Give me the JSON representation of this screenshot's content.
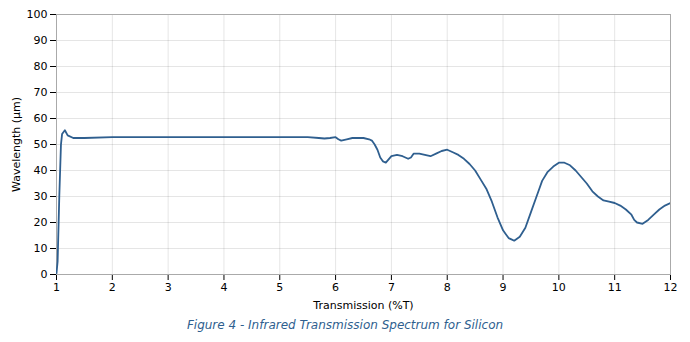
{
  "chart_data": {
    "type": "line",
    "title": "Figure 4 - Infrared Transmission Spectrum for Silicon",
    "xlabel": "Transmission (%T)",
    "ylabel": "Wavelength (µm)",
    "x": [
      1.0,
      1.02,
      1.05,
      1.08,
      1.1,
      1.15,
      1.2,
      1.3,
      1.5,
      2.0,
      2.5,
      3.0,
      3.5,
      4.0,
      4.5,
      5.0,
      5.5,
      5.7,
      5.8,
      5.9,
      6.0,
      6.05,
      6.1,
      6.2,
      6.3,
      6.5,
      6.6,
      6.65,
      6.7,
      6.75,
      6.8,
      6.85,
      6.9,
      7.0,
      7.1,
      7.2,
      7.3,
      7.35,
      7.4,
      7.5,
      7.6,
      7.7,
      7.8,
      7.9,
      8.0,
      8.05,
      8.1,
      8.2,
      8.3,
      8.4,
      8.5,
      8.6,
      8.7,
      8.8,
      8.9,
      9.0,
      9.05,
      9.1,
      9.15,
      9.2,
      9.3,
      9.4,
      9.5,
      9.6,
      9.65,
      9.7,
      9.8,
      9.9,
      10.0,
      10.1,
      10.2,
      10.3,
      10.4,
      10.5,
      10.6,
      10.7,
      10.8,
      10.9,
      11.0,
      11.1,
      11.2,
      11.3,
      11.35,
      11.4,
      11.5,
      11.6,
      11.7,
      11.8,
      11.9,
      12.0
    ],
    "values": [
      0.5,
      5.0,
      30.0,
      50.0,
      54.0,
      55.5,
      53.5,
      52.5,
      52.5,
      52.8,
      52.8,
      52.8,
      52.8,
      52.8,
      52.8,
      52.8,
      52.8,
      52.5,
      52.3,
      52.5,
      52.8,
      52.0,
      51.5,
      52.0,
      52.5,
      52.5,
      52.0,
      51.5,
      50.0,
      48.0,
      45.0,
      43.5,
      43.0,
      45.5,
      46.0,
      45.5,
      44.5,
      45.0,
      46.5,
      46.5,
      46.0,
      45.5,
      46.5,
      47.5,
      48.0,
      47.5,
      47.0,
      46.0,
      44.5,
      42.5,
      40.0,
      36.5,
      33.0,
      28.0,
      22.0,
      17.0,
      15.5,
      14.0,
      13.5,
      13.0,
      14.5,
      18.0,
      24.0,
      30.0,
      33.0,
      36.0,
      39.5,
      41.5,
      43.0,
      43.0,
      42.0,
      40.0,
      37.5,
      35.0,
      32.0,
      30.0,
      28.5,
      28.0,
      27.5,
      26.5,
      25.0,
      23.0,
      21.0,
      20.0,
      19.5,
      21.0,
      23.0,
      25.0,
      26.5,
      27.5
    ],
    "color": "#2F5F8F",
    "xlim": [
      1,
      12
    ],
    "ylim": [
      0,
      100
    ],
    "xticks": [
      1,
      2,
      3,
      4,
      5,
      6,
      7,
      8,
      9,
      10,
      11,
      12
    ],
    "yticks": [
      0,
      10,
      20,
      30,
      40,
      50,
      60,
      70,
      80,
      90,
      100
    ],
    "grid": true
  }
}
